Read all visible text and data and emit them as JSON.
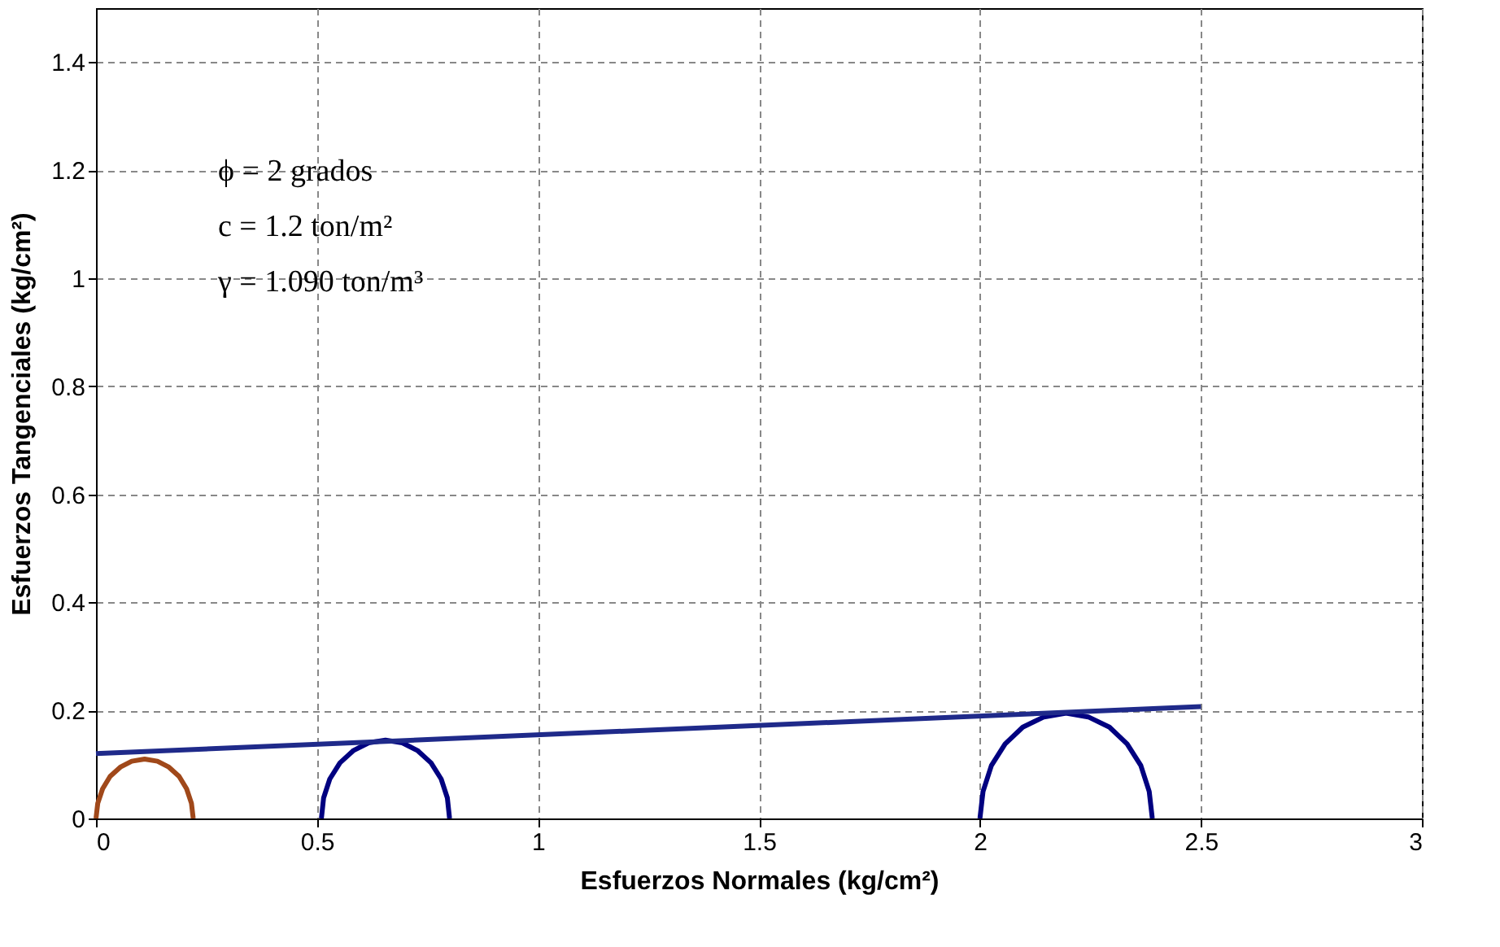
{
  "chart_data": {
    "type": "line",
    "xlabel": "Esfuerzos Normales  (kg/cm²)",
    "ylabel": "Esfuerzos Tangenciales  (kg/cm²)",
    "annotations": [
      "ϕ =      2      grados",
      "c =      1.2      ton/m²",
      "γ =    1.090     ton/m³"
    ],
    "series": [
      {
        "color": "#a0481a",
        "x": [
          0,
          0.004,
          0.015,
          0.032,
          0.055,
          0.081,
          0.11,
          0.139,
          0.165,
          0.188,
          0.205,
          0.216,
          0.22
        ],
        "values": [
          0,
          0.028,
          0.055,
          0.078,
          0.095,
          0.106,
          0.11,
          0.106,
          0.095,
          0.078,
          0.055,
          0.028,
          0
        ]
      },
      {
        "color": "#000080",
        "x": [
          0.51,
          0.515,
          0.529,
          0.552,
          0.583,
          0.617,
          0.655,
          0.693,
          0.727,
          0.758,
          0.781,
          0.795,
          0.8
        ],
        "values": [
          0,
          0.038,
          0.073,
          0.103,
          0.126,
          0.14,
          0.145,
          0.14,
          0.126,
          0.103,
          0.073,
          0.038,
          0
        ]
      },
      {
        "color": "#000080",
        "x": [
          2.0,
          2.007,
          2.026,
          2.057,
          2.097,
          2.145,
          2.195,
          2.245,
          2.293,
          2.333,
          2.364,
          2.383,
          2.39
        ],
        "values": [
          0,
          0.05,
          0.098,
          0.138,
          0.169,
          0.188,
          0.195,
          0.188,
          0.169,
          0.138,
          0.098,
          0.05,
          0
        ]
      },
      {
        "color": "#1f2a8a",
        "x": [
          0,
          2.5
        ],
        "values": [
          0.12,
          0.207
        ]
      }
    ],
    "xlim": [
      0,
      3
    ],
    "xticks": [
      0,
      0.5,
      1,
      1.5,
      2,
      2.5,
      3
    ],
    "ylim": [
      0,
      1.5
    ],
    "yticks": [
      0,
      0.2,
      0.4,
      0.6,
      0.8,
      1,
      1.2,
      1.4
    ],
    "grid": true,
    "legend": false,
    "marker": "none",
    "line_style": "solid"
  }
}
